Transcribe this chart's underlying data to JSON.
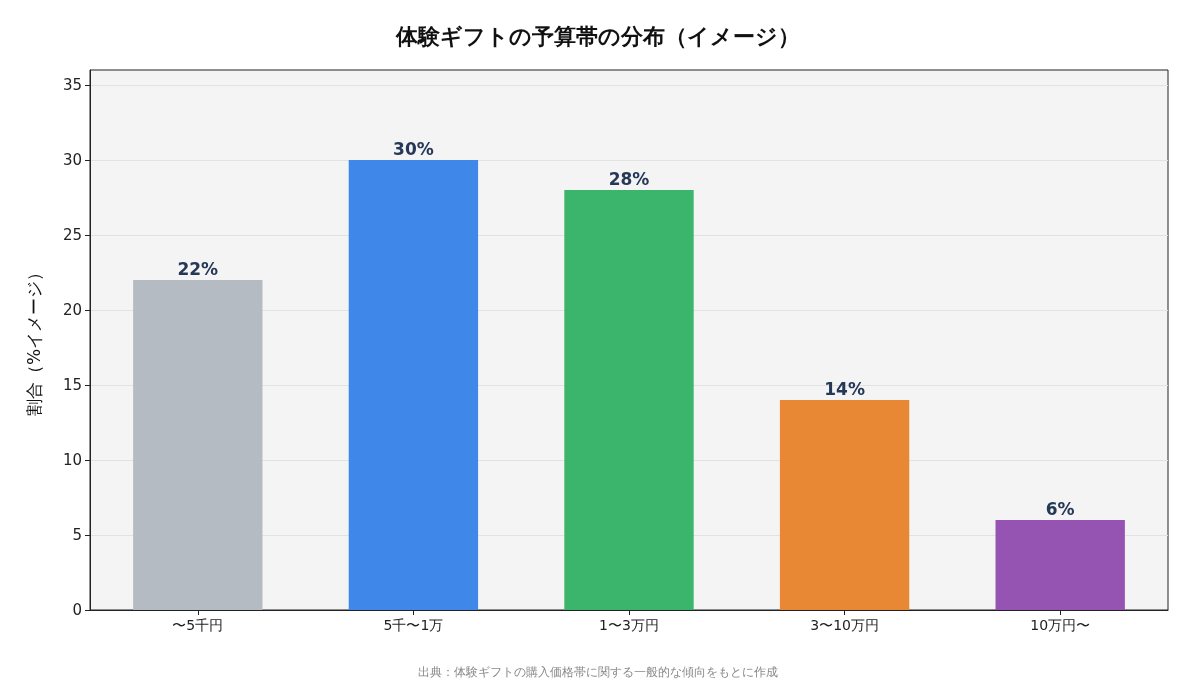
{
  "chart_data": {
    "type": "bar",
    "title": "体験ギフトの予算帯の分布（イメージ）",
    "ylabel": "割合（%イメージ）",
    "categories": [
      "〜5千円",
      "5千〜1万",
      "1〜3万円",
      "3〜10万円",
      "10万円〜"
    ],
    "values": [
      22,
      30,
      28,
      14,
      6
    ],
    "colors": [
      "#b4bbc3",
      "#3f88e9",
      "#3bb46c",
      "#e88834",
      "#9553b2"
    ],
    "value_labels": [
      "22%",
      "30%",
      "28%",
      "14%",
      "6%"
    ],
    "ylim": [
      0,
      36
    ],
    "yticks": [
      0,
      5,
      10,
      15,
      20,
      25,
      30,
      35
    ],
    "grid": "y",
    "annotations": [
      "出典：体験ギフトの購入価格帯に関する一般的な傾向をもとに作成"
    ]
  }
}
